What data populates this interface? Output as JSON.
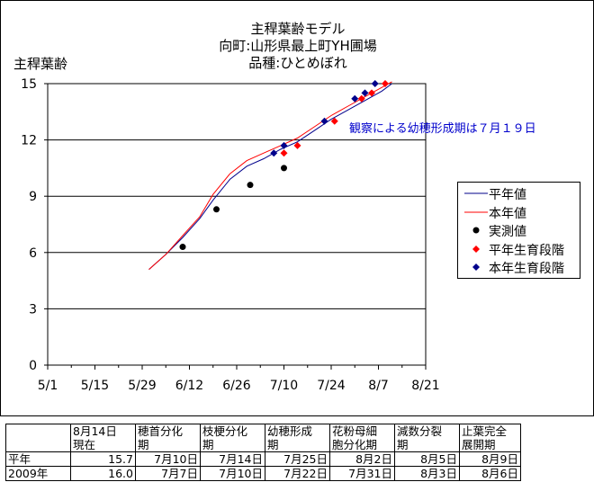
{
  "chart_data": {
    "type": "line",
    "title": [
      "主稈葉齢モデル",
      "向町:山形県最上町YH圃場",
      "品種:ひとめぼれ"
    ],
    "ylabel": "主稈葉齢",
    "xlabel": "",
    "ylim": [
      0,
      15
    ],
    "yticks": [
      0,
      3,
      6,
      9,
      12,
      15
    ],
    "xlim": [
      "5/1",
      "8/21"
    ],
    "xticks": [
      "5/1",
      "5/15",
      "5/29",
      "6/12",
      "6/26",
      "7/10",
      "7/24",
      "8/7",
      "8/21"
    ],
    "grid": "horizontal",
    "legend_position": "right",
    "annotation": "観察による幼穂形成期は７月１９日",
    "series": [
      {
        "name": "平年値",
        "kind": "line",
        "color": "#00008b",
        "x": [
          "5/31",
          "6/5",
          "6/10",
          "6/15",
          "6/19",
          "6/24",
          "6/29",
          "7/4",
          "7/9",
          "7/14",
          "7/19",
          "7/24",
          "7/29",
          "8/3",
          "8/8",
          "8/11"
        ],
        "y": [
          5.1,
          5.9,
          6.8,
          7.8,
          8.8,
          9.9,
          10.6,
          11.0,
          11.5,
          11.9,
          12.5,
          13.1,
          13.6,
          14.1,
          14.6,
          15.0
        ]
      },
      {
        "name": "本年値",
        "kind": "line",
        "color": "#ff0000",
        "x": [
          "5/31",
          "6/5",
          "6/10",
          "6/15",
          "6/19",
          "6/24",
          "6/29",
          "7/4",
          "7/9",
          "7/14",
          "7/19",
          "7/24",
          "7/29",
          "8/3",
          "8/8",
          "8/11"
        ],
        "y": [
          5.1,
          5.9,
          6.9,
          7.9,
          9.1,
          10.2,
          10.9,
          11.3,
          11.7,
          12.1,
          12.7,
          13.3,
          13.8,
          14.3,
          14.8,
          15.1
        ]
      },
      {
        "name": "実測値",
        "kind": "point",
        "marker": "circle",
        "color": "#000000",
        "x": [
          "6/10",
          "6/20",
          "6/30",
          "7/10"
        ],
        "y": [
          6.3,
          8.3,
          9.6,
          10.5
        ]
      },
      {
        "name": "平年生育段階",
        "kind": "point",
        "marker": "diamond",
        "color": "#ff0000",
        "x": [
          "7/10",
          "7/14",
          "7/25",
          "8/2",
          "8/5",
          "8/9"
        ],
        "y": [
          11.3,
          11.7,
          13.0,
          14.2,
          14.5,
          15.0
        ]
      },
      {
        "name": "本年生育段階",
        "kind": "point",
        "marker": "diamond",
        "color": "#00008b",
        "x": [
          "7/7",
          "7/10",
          "7/22",
          "7/31",
          "8/3",
          "8/6"
        ],
        "y": [
          11.3,
          11.7,
          13.0,
          14.2,
          14.5,
          15.0
        ]
      }
    ]
  },
  "table": {
    "headers": [
      [
        "",
        ""
      ],
      [
        "8月14日",
        "現在"
      ],
      [
        "穂首分化",
        "期"
      ],
      [
        "枝梗分化",
        "期"
      ],
      [
        "幼穂形成",
        "期"
      ],
      [
        "花粉母細",
        "胞分化期"
      ],
      [
        "減数分裂",
        "期"
      ],
      [
        "止葉完全",
        "展開期"
      ]
    ],
    "rows": [
      [
        "平年",
        "15.7",
        "7月10日",
        "7月14日",
        "7月25日",
        "8月2日",
        "8月5日",
        "8月9日"
      ],
      [
        "2009年",
        "16.0",
        "7月7日",
        "7月10日",
        "7月22日",
        "7月31日",
        "8月3日",
        "8月6日"
      ]
    ]
  }
}
